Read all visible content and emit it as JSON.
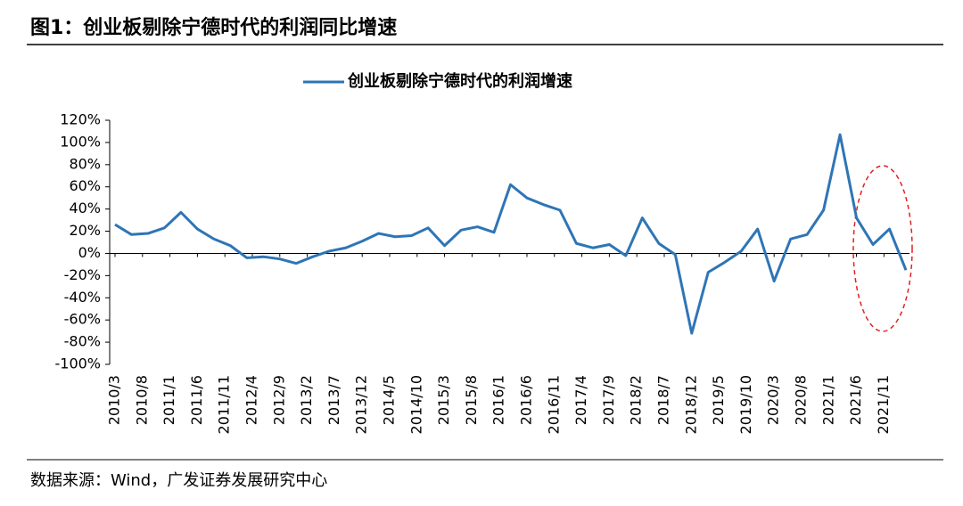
{
  "chart_data": {
    "type": "line",
    "title": "图1：创业板剔除宁德时代的利润同比增速",
    "source": "数据来源：Wind，广发证券发展研究中心",
    "x": [
      "2010/3",
      "2010/6",
      "2010/9",
      "2010/12",
      "2011/3",
      "2011/6",
      "2011/9",
      "2011/12",
      "2012/3",
      "2012/6",
      "2012/9",
      "2012/12",
      "2013/3",
      "2013/6",
      "2013/9",
      "2013/12",
      "2014/3",
      "2014/6",
      "2014/9",
      "2014/12",
      "2015/3",
      "2015/6",
      "2015/9",
      "2015/12",
      "2016/3",
      "2016/6",
      "2016/9",
      "2016/12",
      "2017/3",
      "2017/6",
      "2017/9",
      "2017/12",
      "2018/3",
      "2018/6",
      "2018/9",
      "2018/12",
      "2019/3",
      "2019/6",
      "2019/9",
      "2019/12",
      "2020/3",
      "2020/6",
      "2020/9",
      "2020/12",
      "2021/3",
      "2021/6",
      "2021/9",
      "2021/12",
      "2022/3"
    ],
    "xlim": [
      "2010/3",
      "2022/3"
    ],
    "xticks": [
      "2010/3",
      "2010/8",
      "2011/1",
      "2011/6",
      "2011/11",
      "2012/4",
      "2012/9",
      "2013/2",
      "2013/7",
      "2013/12",
      "2014/5",
      "2014/10",
      "2015/3",
      "2015/8",
      "2016/1",
      "2016/6",
      "2016/11",
      "2017/4",
      "2017/9",
      "2018/2",
      "2018/7",
      "2018/12",
      "2019/5",
      "2019/10",
      "2020/3",
      "2020/8",
      "2021/1",
      "2021/6",
      "2021/11"
    ],
    "series": [
      {
        "name": "创业板剔除宁德时代的利润增速",
        "color": "#2e75b6",
        "values": [
          26,
          17,
          18,
          23,
          37,
          22,
          13,
          7,
          -4,
          -3,
          -5,
          -9,
          -3,
          2,
          5,
          11,
          18,
          15,
          16,
          23,
          7,
          21,
          24,
          19,
          62,
          50,
          44,
          39,
          9,
          5,
          8,
          -2,
          32,
          9,
          -1,
          -72,
          -17,
          -8,
          2,
          22,
          -25,
          13,
          17,
          39,
          107,
          32,
          8,
          22,
          -15
        ]
      }
    ],
    "ylim": [
      -100,
      120
    ],
    "yticks": [
      {
        "value": -100,
        "label": "-100%"
      },
      {
        "value": -80,
        "label": "-80%"
      },
      {
        "value": -60,
        "label": "-60%"
      },
      {
        "value": -40,
        "label": "-40%"
      },
      {
        "value": -20,
        "label": "-20%"
      },
      {
        "value": 0,
        "label": "0%"
      },
      {
        "value": 20,
        "label": "20%"
      },
      {
        "value": 40,
        "label": "40%"
      },
      {
        "value": 60,
        "label": "60%"
      },
      {
        "value": 80,
        "label": "80%"
      },
      {
        "value": 100,
        "label": "100%"
      },
      {
        "value": 120,
        "label": "120%"
      }
    ],
    "legend": "top"
  }
}
